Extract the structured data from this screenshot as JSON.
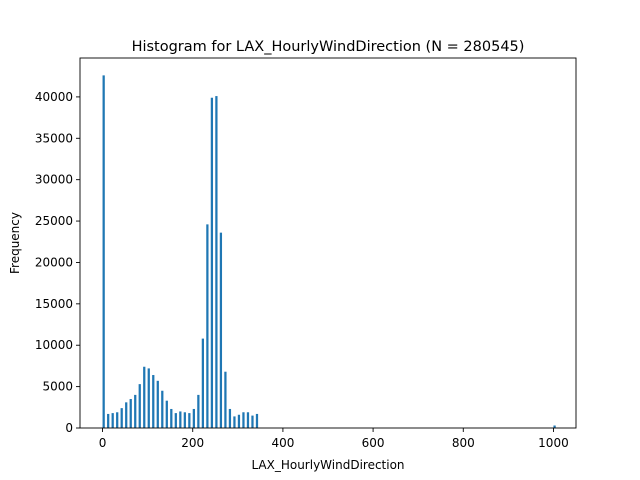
{
  "chart_data": {
    "type": "bar",
    "title": "Histogram for LAX_HourlyWindDirection (N = 280545)",
    "xlabel": "LAX_HourlyWindDirection",
    "ylabel": "Frequency",
    "xlim": [
      -50,
      1050
    ],
    "ylim": [
      0,
      44700
    ],
    "x_ticks": [
      0,
      200,
      400,
      600,
      800,
      1000
    ],
    "y_ticks": [
      0,
      5000,
      10000,
      15000,
      20000,
      25000,
      30000,
      35000,
      40000
    ],
    "bin_width": 5,
    "bar_color": "#1f77b4",
    "grid": false,
    "bins": [
      {
        "x": 0,
        "value": 42600
      },
      {
        "x": 10,
        "value": 1700
      },
      {
        "x": 20,
        "value": 1800
      },
      {
        "x": 30,
        "value": 1900
      },
      {
        "x": 40,
        "value": 2400
      },
      {
        "x": 50,
        "value": 3100
      },
      {
        "x": 60,
        "value": 3500
      },
      {
        "x": 70,
        "value": 4000
      },
      {
        "x": 80,
        "value": 5300
      },
      {
        "x": 90,
        "value": 7400
      },
      {
        "x": 100,
        "value": 7200
      },
      {
        "x": 110,
        "value": 6400
      },
      {
        "x": 120,
        "value": 5700
      },
      {
        "x": 130,
        "value": 4500
      },
      {
        "x": 140,
        "value": 3300
      },
      {
        "x": 150,
        "value": 2300
      },
      {
        "x": 160,
        "value": 1800
      },
      {
        "x": 170,
        "value": 2000
      },
      {
        "x": 180,
        "value": 1900
      },
      {
        "x": 190,
        "value": 1800
      },
      {
        "x": 200,
        "value": 2300
      },
      {
        "x": 210,
        "value": 4000
      },
      {
        "x": 220,
        "value": 10800
      },
      {
        "x": 230,
        "value": 24600
      },
      {
        "x": 240,
        "value": 39900
      },
      {
        "x": 250,
        "value": 40100
      },
      {
        "x": 260,
        "value": 23600
      },
      {
        "x": 270,
        "value": 6800
      },
      {
        "x": 280,
        "value": 2300
      },
      {
        "x": 290,
        "value": 1400
      },
      {
        "x": 300,
        "value": 1600
      },
      {
        "x": 310,
        "value": 1900
      },
      {
        "x": 320,
        "value": 1900
      },
      {
        "x": 330,
        "value": 1500
      },
      {
        "x": 340,
        "value": 1700
      },
      {
        "x": 1000,
        "value": 300
      }
    ]
  }
}
